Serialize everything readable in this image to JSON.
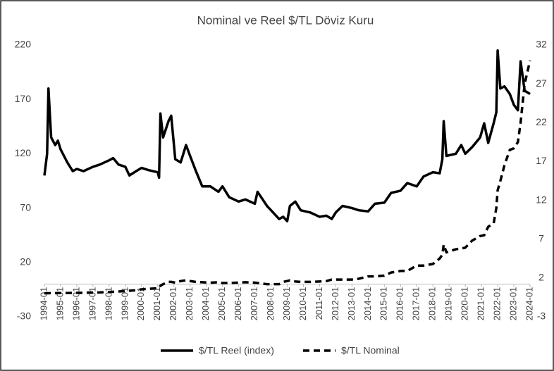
{
  "chart_data": {
    "type": "line",
    "title": "Nominal ve Reel $/TL Döviz Kuru",
    "x": [
      "1994-01",
      "1994-03",
      "1994-04",
      "1994-06",
      "1994-09",
      "1994-11",
      "1995-01",
      "1995-06",
      "1995-10",
      "1996-01",
      "1996-06",
      "1997-01",
      "1997-06",
      "1998-01",
      "1998-04",
      "1998-08",
      "1999-01",
      "1999-04",
      "1999-09",
      "2000-01",
      "2000-06",
      "2001-01",
      "2001-02",
      "2001-03",
      "2001-05",
      "2001-09",
      "2001-11",
      "2002-02",
      "2002-06",
      "2002-10",
      "2003-01",
      "2003-05",
      "2003-10",
      "2004-04",
      "2004-10",
      "2005-01",
      "2005-06",
      "2006-01",
      "2006-06",
      "2007-01",
      "2007-03",
      "2007-10",
      "2008-01",
      "2008-07",
      "2008-10",
      "2009-01",
      "2009-03",
      "2009-07",
      "2009-11",
      "2010-06",
      "2011-01",
      "2011-06",
      "2011-10",
      "2012-01",
      "2012-06",
      "2013-01",
      "2013-06",
      "2014-01",
      "2014-06",
      "2015-01",
      "2015-06",
      "2016-01",
      "2016-06",
      "2017-01",
      "2017-06",
      "2018-01",
      "2018-06",
      "2018-08",
      "2018-09",
      "2018-11",
      "2019-06",
      "2019-10",
      "2020-01",
      "2020-06",
      "2020-12",
      "2021-03",
      "2021-06",
      "2021-10",
      "2021-12",
      "2022-01",
      "2022-03",
      "2022-06",
      "2022-10",
      "2023-01",
      "2023-04",
      "2023-06",
      "2023-09",
      "2024-01"
    ],
    "series": [
      {
        "name": "$/TL Reel (index)",
        "color": "#000000",
        "dashed": false,
        "axis": "y",
        "values": [
          100,
          120,
          180,
          135,
          128,
          132,
          124,
          112,
          104,
          106,
          104,
          108,
          110,
          114,
          116,
          110,
          108,
          100,
          104,
          107,
          105,
          103,
          98,
          157,
          135,
          150,
          155,
          115,
          112,
          128,
          118,
          105,
          90,
          90,
          85,
          90,
          80,
          76,
          78,
          74,
          85,
          72,
          68,
          60,
          62,
          58,
          72,
          76,
          68,
          66,
          62,
          63,
          60,
          66,
          72,
          70,
          68,
          67,
          74,
          75,
          84,
          86,
          93,
          90,
          99,
          103,
          102,
          115,
          150,
          118,
          120,
          128,
          120,
          126,
          135,
          148,
          130,
          148,
          158,
          215,
          180,
          182,
          175,
          165,
          160,
          205,
          178,
          175
        ]
      },
      {
        "name": "$/TL Nominal",
        "color": "#000000",
        "dashed": true,
        "axis": "y2",
        "values": [
          0.03,
          0.04,
          0.04,
          0.05,
          0.05,
          0.05,
          0.06,
          0.06,
          0.07,
          0.08,
          0.09,
          0.12,
          0.14,
          0.2,
          0.22,
          0.26,
          0.32,
          0.36,
          0.42,
          0.54,
          0.6,
          0.67,
          0.7,
          1.0,
          1.2,
          1.5,
          1.5,
          1.4,
          1.6,
          1.7,
          1.6,
          1.5,
          1.45,
          1.4,
          1.45,
          1.35,
          1.35,
          1.4,
          1.45,
          1.4,
          1.35,
          1.2,
          1.2,
          1.2,
          1.5,
          1.6,
          1.7,
          1.55,
          1.5,
          1.5,
          1.55,
          1.6,
          1.8,
          1.8,
          1.8,
          1.8,
          1.9,
          2.2,
          2.2,
          2.3,
          2.7,
          2.9,
          2.9,
          3.6,
          3.6,
          3.8,
          4.5,
          5.0,
          6.3,
          5.3,
          5.7,
          5.8,
          5.9,
          6.8,
          7.4,
          7.5,
          8.6,
          9.0,
          11,
          13.3,
          14.5,
          16.5,
          18.5,
          18.7,
          19.5,
          22,
          27,
          30
        ]
      }
    ],
    "xticks": [
      "1994-01",
      "1995-01",
      "1996-01",
      "1997-01",
      "1998-01",
      "1999-01",
      "2000-01",
      "2001-01",
      "2002-01",
      "2003-01",
      "2004-01",
      "2005-01",
      "2006-01",
      "2007-01",
      "2008-01",
      "2009-01",
      "2010-01",
      "2011-01",
      "2012-01",
      "2013-01",
      "2014-01",
      "2015-01",
      "2016-01",
      "2017-01",
      "2018-01",
      "2019-01",
      "2020-01",
      "2021-01",
      "2022-01",
      "2023-01",
      "2024-01"
    ],
    "ylim": [
      -30,
      220
    ],
    "yticks": [
      -30,
      20,
      70,
      120,
      170,
      220
    ],
    "y2lim": [
      -3,
      32
    ],
    "y2ticks": [
      -3,
      2,
      7,
      12,
      17,
      22,
      27,
      32
    ],
    "legend": "bottom"
  }
}
